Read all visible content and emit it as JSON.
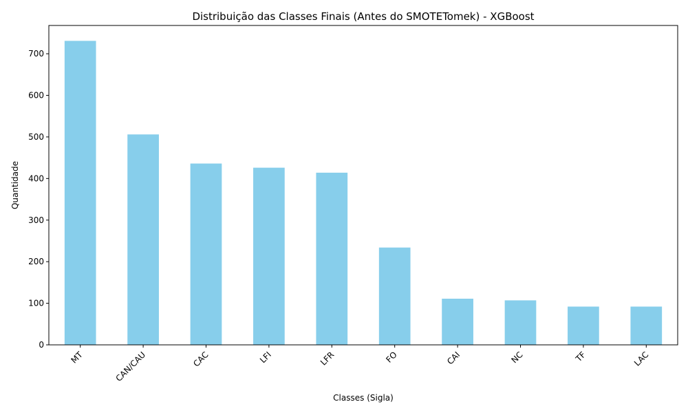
{
  "colors": {
    "bar": "#87ceeb",
    "axis": "#000000",
    "background": "#ffffff"
  },
  "chart_data": {
    "type": "bar",
    "title": "Distribuição das Classes Finais (Antes do SMOTETomek) - XGBoost",
    "xlabel": "Classes (Sigla)",
    "ylabel": "Quantidade",
    "categories": [
      "MT",
      "CAN/CAU",
      "CAC",
      "LFI",
      "LFR",
      "FO",
      "CAI",
      "NC",
      "TF",
      "LAC"
    ],
    "values": [
      731,
      506,
      436,
      426,
      414,
      234,
      111,
      107,
      92,
      92
    ],
    "ylim": [
      0,
      768
    ],
    "yticks": [
      0,
      100,
      200,
      300,
      400,
      500,
      600,
      700
    ],
    "grid": false,
    "legend": "none"
  }
}
